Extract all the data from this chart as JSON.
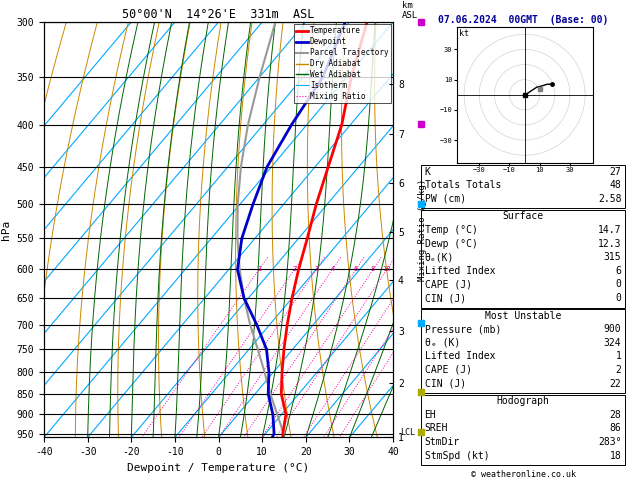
{
  "title_left": "50°00'N  14°26'E  331m  ASL",
  "title_right": "07.06.2024  00GMT  (Base: 00)",
  "xlabel": "Dewpoint / Temperature (°C)",
  "ylabel_left": "hPa",
  "pressure_levels": [
    300,
    350,
    400,
    450,
    500,
    550,
    600,
    650,
    700,
    750,
    800,
    850,
    900,
    950
  ],
  "xlim": [
    -40,
    40
  ],
  "pmin": 300,
  "pmax": 960,
  "temp_profile": {
    "pressure": [
      960,
      950,
      900,
      850,
      800,
      750,
      700,
      650,
      600,
      550,
      500,
      450,
      400,
      350,
      300
    ],
    "temp": [
      14.7,
      14.0,
      11.0,
      6.0,
      2.0,
      -2.0,
      -6.0,
      -10.0,
      -14.0,
      -18.0,
      -22.5,
      -27.0,
      -32.0,
      -39.0,
      -46.0
    ]
  },
  "dewp_profile": {
    "pressure": [
      960,
      950,
      900,
      850,
      800,
      750,
      700,
      650,
      600,
      550,
      500,
      450,
      400,
      350,
      300
    ],
    "temp": [
      12.3,
      12.0,
      8.0,
      3.0,
      -1.0,
      -6.0,
      -13.0,
      -21.0,
      -28.0,
      -33.0,
      -37.0,
      -41.0,
      -43.5,
      -45.5,
      -51.0
    ]
  },
  "parcel_profile": {
    "pressure": [
      960,
      950,
      900,
      850,
      800,
      750,
      700,
      650,
      600,
      550,
      500,
      450,
      400,
      350,
      300
    ],
    "temp": [
      14.7,
      14.2,
      9.0,
      3.5,
      -2.0,
      -8.0,
      -14.5,
      -21.0,
      -27.5,
      -34.0,
      -40.5,
      -47.0,
      -53.5,
      -60.0,
      -67.0
    ]
  },
  "temp_color": "#ff0000",
  "dewp_color": "#0000cc",
  "parcel_color": "#999999",
  "dry_adiabat_color": "#cc8800",
  "wet_adiabat_color": "#006600",
  "isotherm_color": "#00aaff",
  "mixing_ratio_color": "#ff00aa",
  "mixing_ratios": [
    1,
    2,
    3,
    4,
    6,
    8,
    10,
    15,
    20,
    25
  ],
  "km_labels": [
    8,
    7,
    6,
    5,
    4,
    3,
    2,
    1
  ],
  "km_pressures": [
    357,
    411,
    472,
    541,
    620,
    715,
    828,
    965
  ],
  "lcl_pressure": 953,
  "wind_markers": [
    {
      "pressure": 300,
      "color": "#cc00cc"
    },
    {
      "pressure": 400,
      "color": "#cc00cc"
    },
    {
      "pressure": 500,
      "color": "#00aaff"
    },
    {
      "pressure": 700,
      "color": "#00aaff"
    },
    {
      "pressure": 850,
      "color": "#aaaa00"
    },
    {
      "pressure": 950,
      "color": "#aaaa00"
    }
  ],
  "stats": {
    "K": 27,
    "Totals_Totals": 48,
    "PW_cm": "2.58",
    "Surface_Temp": "14.7",
    "Surface_Dewp": "12.3",
    "Surface_theta_e": 315,
    "Lifted_Index": 6,
    "CAPE": 0,
    "CIN": 0,
    "MU_Pressure": 900,
    "MU_theta_e": 324,
    "MU_Lifted_Index": 1,
    "MU_CAPE": 2,
    "MU_CIN": 22,
    "EH": 28,
    "SREH": 86,
    "StmDir": "283°",
    "StmSpd": 18
  }
}
